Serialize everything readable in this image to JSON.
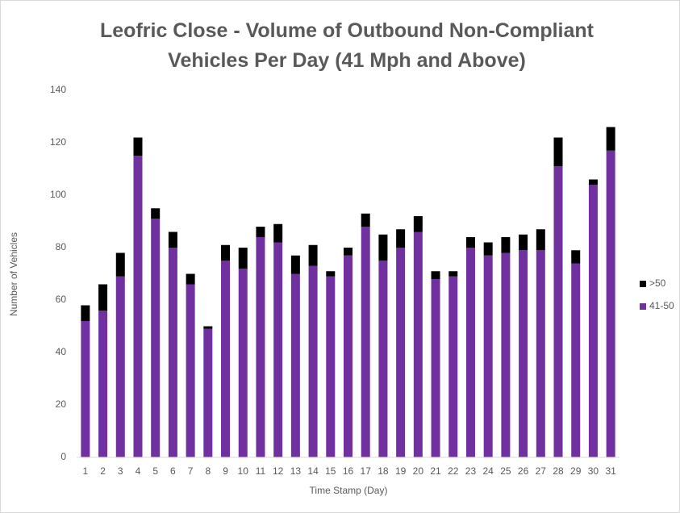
{
  "chart_data": {
    "type": "stacked_bar",
    "title": "Leofric Close - Volume of Outbound Non-Compliant Vehicles Per Day (41 Mph and Above)",
    "x_label": "Time Stamp (Day)",
    "y_label": "Number of Vehicles",
    "categories": [
      "1",
      "2",
      "3",
      "4",
      "5",
      "6",
      "7",
      "8",
      "9",
      "10",
      "11",
      "12",
      "13",
      "14",
      "15",
      "16",
      "17",
      "18",
      "19",
      "20",
      "21",
      "22",
      "23",
      "24",
      "25",
      "26",
      "27",
      "28",
      "29",
      "30",
      "31"
    ],
    "series": [
      {
        "name": "41-50",
        "color": "#7030a0",
        "values": [
          52,
          56,
          69,
          115,
          91,
          80,
          66,
          49,
          75,
          72,
          84,
          82,
          70,
          73,
          69,
          77,
          88,
          75,
          80,
          86,
          68,
          69,
          80,
          77,
          78,
          79,
          79,
          111,
          74,
          104,
          117
        ]
      },
      {
        "name": ">50",
        "color": "#000000",
        "values": [
          6,
          10,
          9,
          7,
          4,
          6,
          4,
          1,
          6,
          8,
          4,
          7,
          7,
          8,
          2,
          3,
          5,
          10,
          7,
          6,
          3,
          2,
          4,
          5,
          6,
          6,
          8,
          11,
          5,
          2,
          9
        ]
      }
    ],
    "ylim": [
      0,
      140
    ],
    "yticks": [
      0,
      20,
      40,
      60,
      80,
      100,
      120,
      140
    ],
    "grid": false,
    "legend": "right"
  }
}
